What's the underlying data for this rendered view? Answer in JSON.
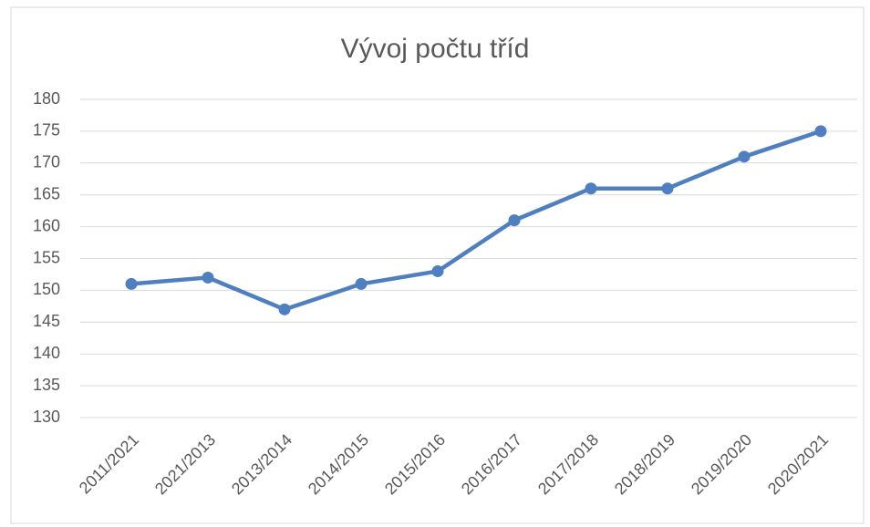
{
  "chart_data": {
    "type": "line",
    "title": "Vývoj počtu tříd",
    "categories": [
      "2011/2021",
      "2021/2013",
      "2013/2014",
      "2014/2015",
      "2015/2016",
      "2016/2017",
      "2017/2018",
      "2018/2019",
      "2019/2020",
      "2020/2021"
    ],
    "values": [
      151,
      152,
      147,
      151,
      153,
      161,
      166,
      166,
      171,
      175
    ],
    "color": "#4f7fbf",
    "ylim": [
      130,
      180
    ],
    "yticks": [
      130,
      135,
      140,
      145,
      150,
      155,
      160,
      165,
      170,
      175,
      180
    ],
    "grid": true
  }
}
